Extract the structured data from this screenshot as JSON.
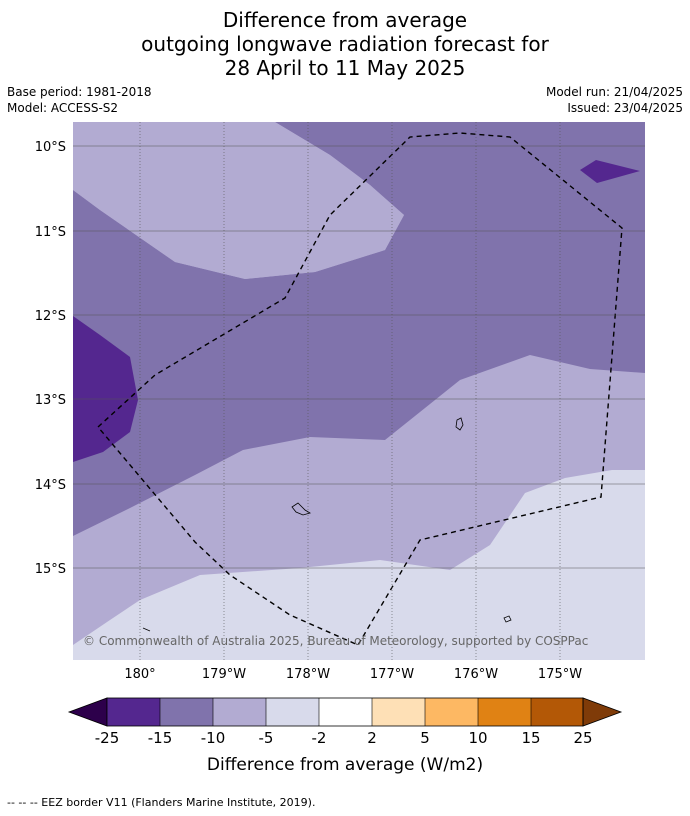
{
  "title": {
    "line1": "Difference from average",
    "line2": "outgoing longwave radiation forecast for",
    "line3": "28 April to 11 May 2025"
  },
  "meta": {
    "base_period": "Base period: 1981-2018",
    "model": "Model: ACCESS-S2",
    "model_run": "Model run: 21/04/2025",
    "issued": "Issued: 23/04/2025"
  },
  "map": {
    "lon_labels": [
      "180°",
      "179°W",
      "178°W",
      "177°W",
      "176°W",
      "175°W"
    ],
    "lat_labels": [
      "10°S",
      "11°S",
      "12°S",
      "13°S",
      "14°S",
      "15°S"
    ],
    "attribution": "© Commonwealth of Australia 2025, Bureau of Meteorology, supported by COSPPac",
    "border_style": "dashed",
    "region_colors": {
      "lt_-15": "#54278f",
      "-15_to_-10": "#8073ac",
      "-10_to_-5": "#b2abd2",
      "-5_to_-2": "#d8daeb"
    }
  },
  "colorbar": {
    "label": "Difference from average (W/m2)",
    "ticks": [
      "-25",
      "-15",
      "-10",
      "-5",
      "-2",
      "2",
      "5",
      "10",
      "15",
      "25"
    ],
    "colors": [
      "#54278f",
      "#8073ac",
      "#b2abd2",
      "#d8daeb",
      "#ffffff",
      "#fee0b6",
      "#fdb863",
      "#e08214",
      "#b35806"
    ],
    "extend_low_color": "#2d004b",
    "extend_high_color": "#7f3b08"
  },
  "footer": {
    "legend": "--  --  -- EEZ border V11 (Flanders Marine Institute, 2019)."
  }
}
